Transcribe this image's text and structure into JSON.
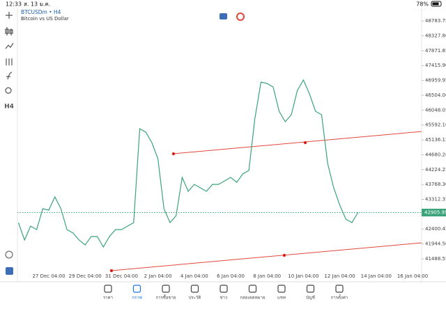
{
  "status": {
    "time": "12:33",
    "date": "ส. 13 ม.ค.",
    "battery": "78%"
  },
  "toolbar": {
    "timeframe": "H4"
  },
  "chart_data": {
    "type": "line",
    "title": "BTCUSDm • H4",
    "subtitle": "Bitcoin vs US Dollar",
    "categories": [
      null,
      null,
      null,
      null,
      null,
      "27 Dec 04:00",
      null,
      null,
      null,
      null,
      null,
      "29 Dec 04:00",
      null,
      null,
      null,
      null,
      null,
      "31 Dec 04:00",
      null,
      null,
      null,
      null,
      null,
      "2 Jan 04:00",
      null,
      null,
      null,
      null,
      null,
      "4 Jan 04:00",
      null,
      null,
      null,
      null,
      null,
      "6 Jan 04:00",
      null,
      null,
      null,
      null,
      null,
      "8 Jan 04:00",
      null,
      null,
      null,
      null,
      null,
      "10 Jan 04:00",
      null,
      null,
      null,
      null,
      null,
      "12 Jan 04:00",
      null,
      null,
      null,
      null,
      null,
      "14 Jan 04:00",
      null,
      null,
      null,
      null,
      null,
      "16 Jan 04:00",
      null
    ],
    "series": [
      {
        "name": "BTCUSDm",
        "color": "#3aa37a",
        "values": [
          42597,
          42064,
          42491,
          42384,
          43024,
          42981,
          43387,
          43024,
          42384,
          42277,
          42064,
          41914,
          42170,
          42170,
          41850,
          42170,
          42384,
          42384,
          42491,
          42597,
          45478,
          45371,
          45051,
          44561,
          43024,
          42597,
          42811,
          43984,
          43558,
          43771,
          43664,
          43558,
          43771,
          43771,
          43878,
          43984,
          43835,
          44091,
          44198,
          45798,
          46908,
          46865,
          46759,
          46012,
          45692,
          45905,
          46652,
          46972,
          46545,
          46012,
          45905,
          44411,
          43664,
          43131,
          42704,
          42597,
          42906,
          null,
          null,
          null,
          null,
          null,
          null,
          null,
          null,
          null,
          null
        ]
      }
    ],
    "ylim": [
      40890,
      49170
    ],
    "yticks": [
      48783.75,
      {
        "value": 48327.8,
        "label": "48327.80"
      },
      47871.85,
      {
        "value": 47415.9,
        "label": "47415.90"
      },
      46959.95,
      {
        "value": 46504,
        "label": "46504.00"
      },
      46048.05,
      {
        "value": 45592.1,
        "label": "45592.10"
      },
      45136.15,
      {
        "value": 44680.2,
        "label": "44680.20"
      },
      44224.25,
      {
        "value": 43768.3,
        "label": "43768.30"
      },
      43312.35,
      42400.45,
      {
        "value": 41944.5,
        "label": "41944.50"
      },
      41488.55
    ],
    "last_price": 42905.99
  },
  "nav": [
    "ราคา",
    "กราฟ",
    "การซื้อขาย",
    "ประวัติ",
    "ข่าว",
    "กล่องจดหมาย",
    "แชท",
    "บัญชี",
    "การตั้งค่า"
  ]
}
